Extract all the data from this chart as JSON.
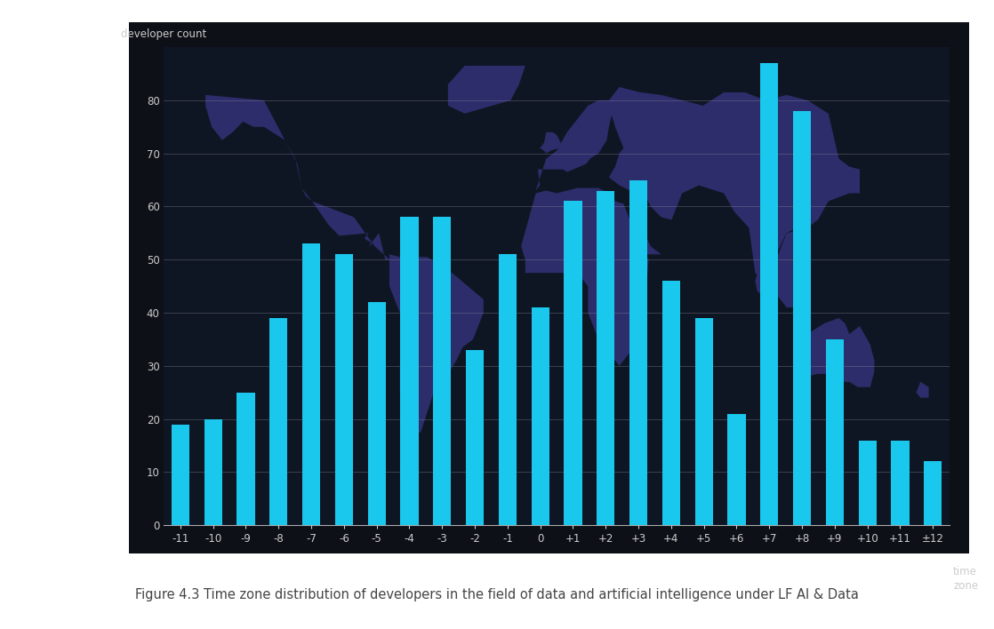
{
  "categories": [
    "-11",
    "-10",
    "-9",
    "-8",
    "-7",
    "-6",
    "-5",
    "-4",
    "-3",
    "-2",
    "-1",
    "0",
    "+1",
    "+2",
    "+3",
    "+4",
    "+5",
    "+6",
    "+7",
    "+8",
    "+9",
    "+10",
    "+11",
    "±12"
  ],
  "values": [
    19,
    20,
    25,
    39,
    53,
    51,
    42,
    58,
    58,
    33,
    51,
    41,
    61,
    63,
    65,
    46,
    39,
    21,
    87,
    78,
    35,
    16,
    16,
    12
  ],
  "bar_color": "#1AC8ED",
  "outer_bg": "#0d1117",
  "plot_bg_color": "#0f1623",
  "map_dark_color": "#0d1117",
  "map_land_color": "#2d2d6b",
  "grid_color": "#888899",
  "text_color": "#cccccc",
  "axis_line_color": "#aaaaaa",
  "ylabel": "developer count",
  "xlabel_right": "time\nzone",
  "ylim": [
    0,
    90
  ],
  "yticks": [
    0,
    10,
    20,
    30,
    40,
    50,
    60,
    70,
    80
  ],
  "caption": "Figure 4.3 Time zone distribution of developers in the field of data and artificial intelligence under LF AI & Data",
  "caption_color": "#444444",
  "caption_fontsize": 10.5
}
